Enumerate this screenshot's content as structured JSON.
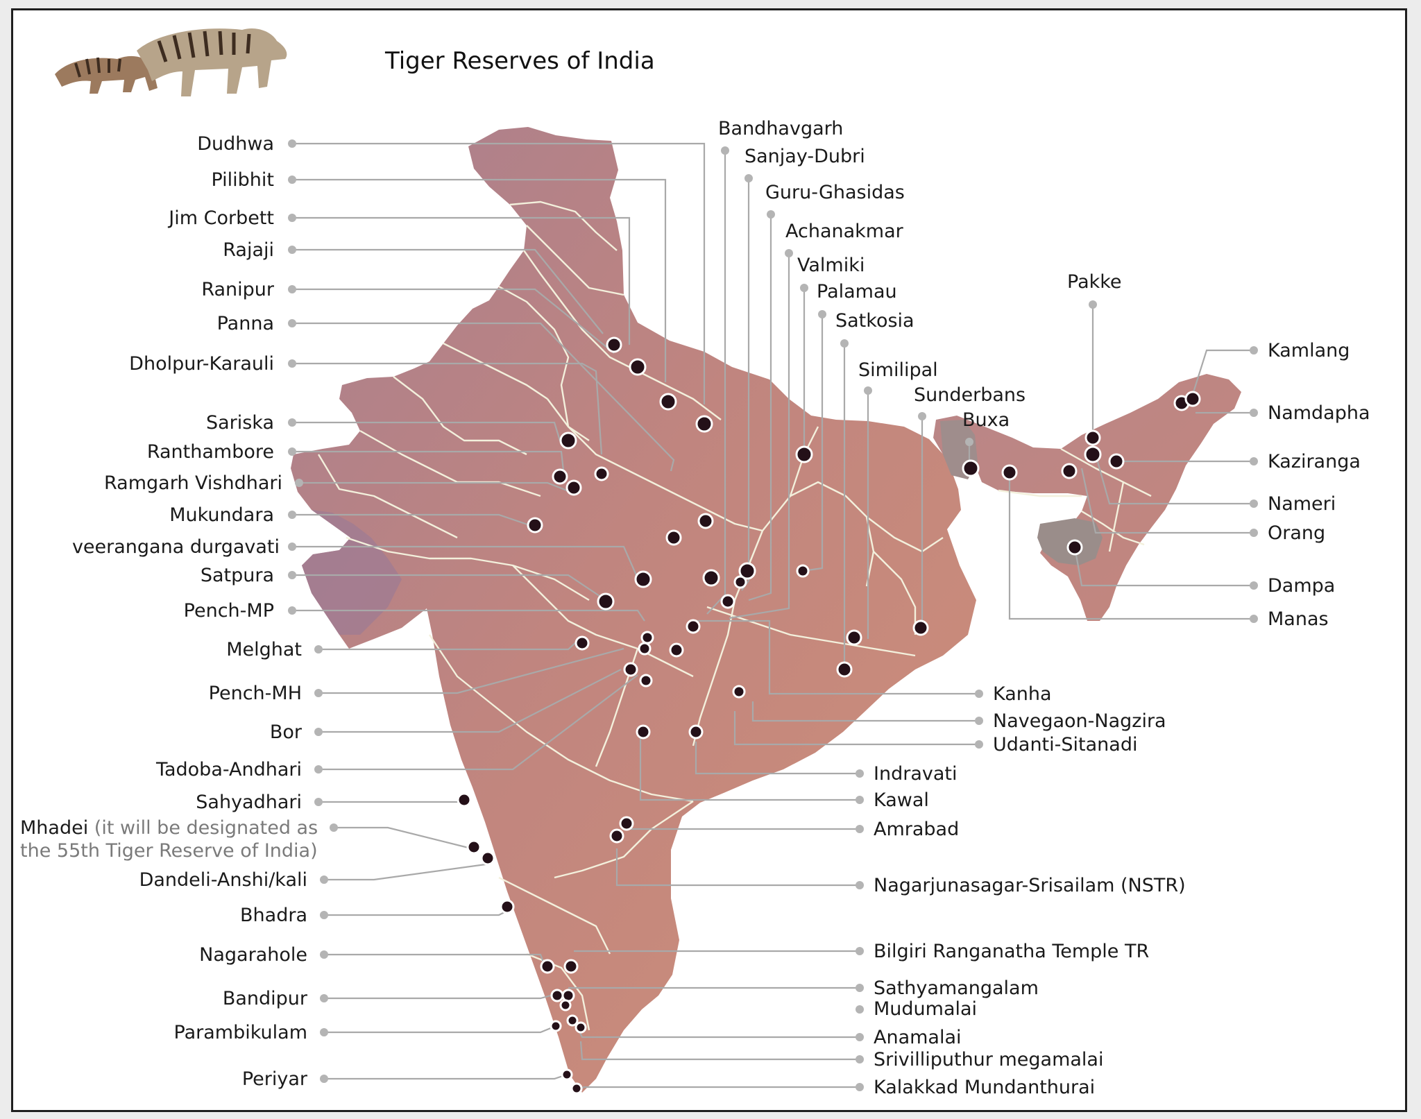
{
  "title": "Tiger Reserves of India",
  "icons": {
    "logo": "tiger-and-cub-icon",
    "reserve_marker": "reserve-dot-icon",
    "label_anchor": "leader-dot-icon"
  },
  "colors": {
    "map_fill_start": "#b07e86",
    "map_fill_end": "#c98b76",
    "reserve_dot": "#241018",
    "leader": "#a9a9a9",
    "border": "#f3f0dc"
  },
  "left_labels": [
    {
      "name": "Dudhwa"
    },
    {
      "name": "Pilibhit"
    },
    {
      "name": "Jim Corbett"
    },
    {
      "name": "Rajaji"
    },
    {
      "name": "Ranipur"
    },
    {
      "name": "Panna"
    },
    {
      "name": "Dholpur-Karauli"
    },
    {
      "name": "Sariska"
    },
    {
      "name": "Ranthambore"
    },
    {
      "name": "Ramgarh Vishdhari"
    },
    {
      "name": "Mukundara"
    },
    {
      "name": "veerangana durgavati"
    },
    {
      "name": "Satpura"
    },
    {
      "name": "Pench-MP"
    },
    {
      "name": "Melghat"
    },
    {
      "name": "Pench-MH"
    },
    {
      "name": "Bor"
    },
    {
      "name": "Tadoba-Andhari"
    },
    {
      "name": "Sahyadhari"
    },
    {
      "name": "Mhadei",
      "note_line1": " (it will be designated as",
      "note_line2": "the 55th Tiger Reserve of India)"
    },
    {
      "name": "Dandeli-Anshi/kali"
    },
    {
      "name": "Bhadra"
    },
    {
      "name": "Nagarahole"
    },
    {
      "name": "Bandipur"
    },
    {
      "name": "Parambikulam"
    },
    {
      "name": "Periyar"
    }
  ],
  "top_labels": [
    {
      "name": "Bandhavgarh"
    },
    {
      "name": "Sanjay-Dubri"
    },
    {
      "name": "Guru-Ghasidas"
    },
    {
      "name": "Achanakmar"
    },
    {
      "name": "Valmiki"
    },
    {
      "name": "Palamau"
    },
    {
      "name": "Satkosia"
    },
    {
      "name": "Similipal"
    },
    {
      "name": "Sunderbans"
    },
    {
      "name": "Buxa"
    },
    {
      "name": "Pakke"
    }
  ],
  "east_labels": [
    {
      "name": "Kamlang"
    },
    {
      "name": "Namdapha"
    },
    {
      "name": "Kaziranga"
    },
    {
      "name": "Nameri"
    },
    {
      "name": "Orang"
    },
    {
      "name": "Dampa"
    },
    {
      "name": "Manas"
    }
  ],
  "right_labels": [
    {
      "name": "Kanha"
    },
    {
      "name": "Navegaon-Nagzira"
    },
    {
      "name": "Udanti-Sitanadi"
    },
    {
      "name": "Indravati"
    },
    {
      "name": "Kawal"
    },
    {
      "name": "Amrabad"
    },
    {
      "name": "Nagarjunasagar-Srisailam (NSTR)"
    },
    {
      "name": "Bilgiri Ranganatha Temple TR"
    },
    {
      "name": "Sathyamangalam"
    },
    {
      "name": "Mudumalai"
    },
    {
      "name": "Anamalai"
    },
    {
      "name": "Srivilliputhur megamalai"
    },
    {
      "name": "Kalakkad Mundanthurai"
    }
  ]
}
